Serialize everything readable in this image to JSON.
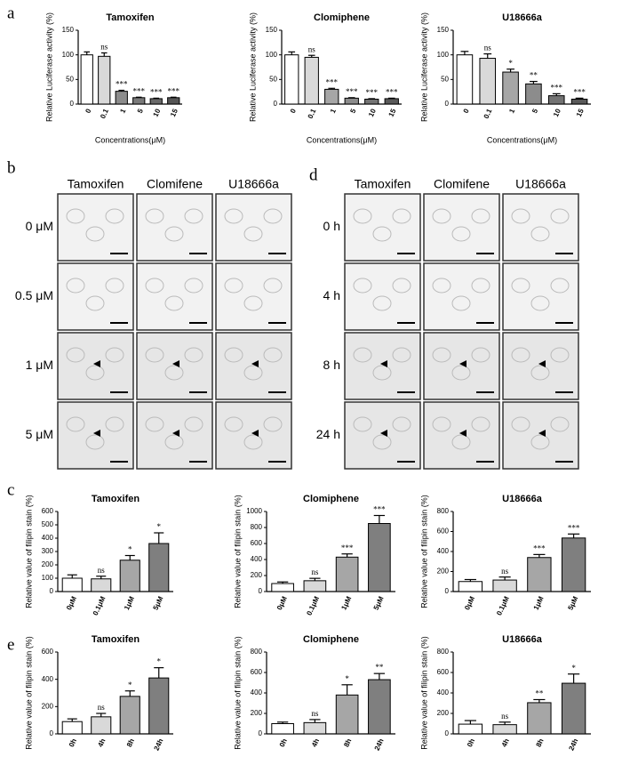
{
  "panel_labels": [
    "a",
    "b",
    "c",
    "d",
    "e"
  ],
  "chart_data": [
    {
      "type": "bar",
      "title": "Tamoxifen",
      "xlabel": "Concentrations(μM)",
      "ylabel": "Relative Luciferase activity (%)",
      "categories": [
        "0",
        "0.1",
        "1",
        "5",
        "10",
        "15"
      ],
      "values": [
        100,
        97,
        26,
        13,
        11,
        13
      ],
      "errors": [
        6,
        7,
        2,
        1,
        1,
        1
      ],
      "annotations": [
        null,
        "ns",
        "***",
        "***",
        "***",
        "***"
      ],
      "colors": [
        "#ffffff",
        "#d9d9d9",
        "#8c8c8c",
        "#7a7a7a",
        "#6a6a6a",
        "#555555"
      ],
      "ylim": [
        0,
        150
      ],
      "yticks": [
        0,
        50,
        100,
        150
      ]
    },
    {
      "type": "bar",
      "title": "Clomiphene",
      "xlabel": "Concentrations(μM)",
      "ylabel": "Relative Luciferase activity (%)",
      "categories": [
        "0",
        "0.1",
        "1",
        "5",
        "10",
        "15"
      ],
      "values": [
        100,
        95,
        30,
        12,
        10,
        11
      ],
      "errors": [
        6,
        4,
        2,
        1,
        1,
        1
      ],
      "annotations": [
        null,
        "ns",
        "***",
        "***",
        "***",
        "***"
      ],
      "colors": [
        "#ffffff",
        "#d9d9d9",
        "#a6a6a6",
        "#8c8c8c",
        "#737373",
        "#595959"
      ],
      "ylim": [
        0,
        150
      ],
      "yticks": [
        0,
        50,
        100,
        150
      ]
    },
    {
      "type": "bar",
      "title": "U18666a",
      "xlabel": "Concentrations(μM)",
      "ylabel": "Relative Luciferase activity (%)",
      "categories": [
        "0",
        "0.1",
        "1",
        "5",
        "10",
        "15"
      ],
      "values": [
        100,
        93,
        65,
        41,
        17,
        10
      ],
      "errors": [
        7,
        9,
        6,
        5,
        4,
        2
      ],
      "annotations": [
        null,
        "ns",
        "*",
        "**",
        "***",
        "***"
      ],
      "colors": [
        "#ffffff",
        "#d9d9d9",
        "#a6a6a6",
        "#8c8c8c",
        "#737373",
        "#595959"
      ],
      "ylim": [
        0,
        150
      ],
      "yticks": [
        0,
        50,
        100,
        150
      ]
    },
    {
      "type": "bar",
      "title": "Tamoxifen",
      "ylabel": "Relative value of filipin stain (%)",
      "categories": [
        "0μM",
        "0.1μM",
        "1μM",
        "5μM"
      ],
      "values": [
        100,
        95,
        235,
        360
      ],
      "errors": [
        25,
        20,
        35,
        80
      ],
      "annotations": [
        null,
        "ns",
        "*",
        "*"
      ],
      "colors": [
        "#ffffff",
        "#d9d9d9",
        "#a6a6a6",
        "#7f7f7f"
      ],
      "ylim": [
        0,
        600
      ],
      "yticks": [
        0,
        100,
        200,
        300,
        400,
        500,
        600
      ]
    },
    {
      "type": "bar",
      "title": "Clomiphene",
      "ylabel": "Relative value of filipin stain (%)",
      "categories": [
        "0μM",
        "0.1μM",
        "1μM",
        "5μM"
      ],
      "values": [
        100,
        135,
        430,
        850
      ],
      "errors": [
        20,
        30,
        40,
        100
      ],
      "annotations": [
        null,
        "ns",
        "***",
        "***"
      ],
      "colors": [
        "#ffffff",
        "#d9d9d9",
        "#a6a6a6",
        "#7f7f7f"
      ],
      "ylim": [
        0,
        1000
      ],
      "yticks": [
        0,
        200,
        400,
        600,
        800,
        1000
      ]
    },
    {
      "type": "bar",
      "title": "U18666a",
      "ylabel": "Relative value of filipin stain (%)",
      "categories": [
        "0μM",
        "0.1μM",
        "1μM",
        "5μM"
      ],
      "values": [
        100,
        115,
        340,
        535
      ],
      "errors": [
        20,
        30,
        30,
        40
      ],
      "annotations": [
        null,
        "ns",
        "***",
        "***"
      ],
      "colors": [
        "#ffffff",
        "#d9d9d9",
        "#a6a6a6",
        "#7f7f7f"
      ],
      "ylim": [
        0,
        800
      ],
      "yticks": [
        0,
        200,
        400,
        600,
        800
      ]
    },
    {
      "type": "bar",
      "title": "Tamoxifen",
      "ylabel": "Relative value of filipin stain (%)",
      "categories": [
        "0h",
        "4h",
        "8h",
        "24h"
      ],
      "values": [
        90,
        125,
        275,
        410
      ],
      "errors": [
        20,
        25,
        40,
        75
      ],
      "annotations": [
        null,
        "ns",
        "*",
        "*"
      ],
      "colors": [
        "#ffffff",
        "#d9d9d9",
        "#a6a6a6",
        "#7f7f7f"
      ],
      "ylim": [
        0,
        600
      ],
      "yticks": [
        0,
        200,
        400,
        600
      ]
    },
    {
      "type": "bar",
      "title": "Clomiphene",
      "ylabel": "Relative value of filipin stain (%)",
      "categories": [
        "0h",
        "4h",
        "8h",
        "24h"
      ],
      "values": [
        100,
        110,
        380,
        530
      ],
      "errors": [
        15,
        30,
        100,
        60
      ],
      "annotations": [
        null,
        "ns",
        "*",
        "**"
      ],
      "colors": [
        "#ffffff",
        "#d9d9d9",
        "#a6a6a6",
        "#7f7f7f"
      ],
      "ylim": [
        0,
        800
      ],
      "yticks": [
        0,
        200,
        400,
        600,
        800
      ]
    },
    {
      "type": "bar",
      "title": "U18666a",
      "ylabel": "Relative value of filipin stain (%)",
      "categories": [
        "0h",
        "4h",
        "8h",
        "24h"
      ],
      "values": [
        95,
        90,
        305,
        495
      ],
      "errors": [
        35,
        25,
        30,
        90
      ],
      "annotations": [
        null,
        "ns",
        "**",
        "*"
      ],
      "colors": [
        "#ffffff",
        "#d9d9d9",
        "#a6a6a6",
        "#7f7f7f"
      ],
      "ylim": [
        0,
        800
      ],
      "yticks": [
        0,
        200,
        400,
        600,
        800
      ]
    }
  ],
  "image_panels": [
    {
      "columns": [
        "Tamoxifen",
        "Clomifene",
        "U18666a"
      ],
      "rows": [
        "0 μM",
        "0.5 μM",
        "1 μM",
        "5 μM"
      ]
    },
    {
      "columns": [
        "Tamoxifen",
        "Clomifene",
        "U18666a"
      ],
      "rows": [
        "0 h",
        "4 h",
        "8 h",
        "24 h"
      ]
    }
  ]
}
